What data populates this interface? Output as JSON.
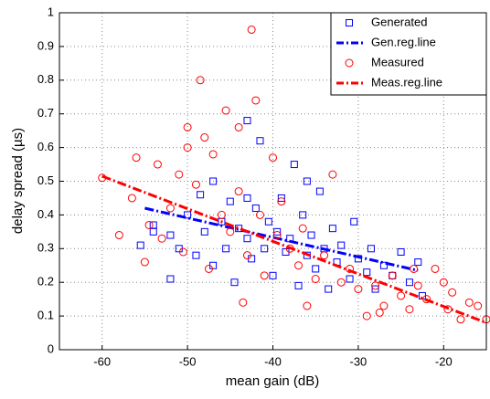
{
  "chart_data": {
    "type": "scatter",
    "xlabel": "mean gain (dB)",
    "ylabel": "delay spread (µs)",
    "xlim": [
      -65,
      -15
    ],
    "ylim": [
      0,
      1
    ],
    "xticks": [
      -60,
      -50,
      -40,
      -30,
      -20
    ],
    "yticks": [
      0,
      0.1,
      0.2,
      0.3,
      0.4,
      0.5,
      0.6,
      0.7,
      0.8,
      0.9,
      1
    ],
    "grid": true,
    "legend": "upper right",
    "series": [
      {
        "name": "Generated",
        "color": "#0000ff",
        "marker": "square",
        "x": [
          -55.5,
          -54,
          -52,
          -52,
          -51,
          -50,
          -49,
          -48.5,
          -48,
          -47,
          -47,
          -46,
          -45.5,
          -45,
          -44.5,
          -44,
          -43,
          -43,
          -42.5,
          -42,
          -41.5,
          -41,
          -40.5,
          -40,
          -39.5,
          -39,
          -38.5,
          -38,
          -37.5,
          -37,
          -36.5,
          -36,
          -35.5,
          -35,
          -34.5,
          -34,
          -33.5,
          -33,
          -32.5,
          -32,
          -31,
          -30.5,
          -30,
          -29,
          -28.5,
          -28,
          -27,
          -26,
          -25,
          -24,
          -23,
          -22.5,
          -54,
          -43,
          -36
        ],
        "y": [
          0.31,
          0.37,
          0.34,
          0.21,
          0.3,
          0.4,
          0.28,
          0.46,
          0.35,
          0.25,
          0.5,
          0.38,
          0.3,
          0.44,
          0.2,
          0.36,
          0.68,
          0.33,
          0.27,
          0.42,
          0.62,
          0.3,
          0.38,
          0.22,
          0.35,
          0.45,
          0.29,
          0.33,
          0.55,
          0.19,
          0.4,
          0.28,
          0.34,
          0.24,
          0.47,
          0.3,
          0.18,
          0.36,
          0.26,
          0.31,
          0.21,
          0.38,
          0.27,
          0.23,
          0.3,
          0.18,
          0.25,
          0.22,
          0.29,
          0.2,
          0.26,
          0.16,
          0.35,
          0.45,
          0.5
        ]
      },
      {
        "name": "Gen.reg.line",
        "color": "#0000ff",
        "style": "dashdot",
        "x": [
          -55,
          -23
        ],
        "y": [
          0.42,
          0.235
        ]
      },
      {
        "name": "Measured",
        "color": "#ff0000",
        "marker": "circle",
        "x": [
          -60,
          -58,
          -56.5,
          -56,
          -55,
          -54.5,
          -53.5,
          -53,
          -52,
          -51,
          -50.5,
          -50,
          -50,
          -49,
          -48.5,
          -48,
          -47.5,
          -47,
          -46,
          -45.5,
          -45,
          -44,
          -44,
          -43.5,
          -43,
          -42.5,
          -42,
          -41.5,
          -41,
          -40,
          -39.5,
          -39,
          -38,
          -37,
          -36.5,
          -36,
          -35,
          -34,
          -33,
          -32,
          -31,
          -30,
          -29,
          -28,
          -27,
          -26,
          -25,
          -24,
          -23,
          -22,
          -21,
          -20,
          -19.5,
          -19,
          -18,
          -17,
          -16,
          -15,
          -23.5,
          -27.5
        ],
        "y": [
          0.51,
          0.34,
          0.45,
          0.57,
          0.26,
          0.37,
          0.55,
          0.33,
          0.42,
          0.52,
          0.29,
          0.66,
          0.6,
          0.49,
          0.8,
          0.63,
          0.24,
          0.58,
          0.4,
          0.71,
          0.35,
          0.66,
          0.47,
          0.14,
          0.28,
          0.95,
          0.74,
          0.4,
          0.22,
          0.57,
          0.34,
          0.44,
          0.3,
          0.25,
          0.36,
          0.13,
          0.21,
          0.28,
          0.52,
          0.2,
          0.24,
          0.18,
          0.1,
          0.19,
          0.13,
          0.22,
          0.16,
          0.12,
          0.19,
          0.15,
          0.24,
          0.2,
          0.12,
          0.17,
          0.09,
          0.14,
          0.13,
          0.09,
          0.24,
          0.11
        ]
      },
      {
        "name": "Meas.reg.line",
        "color": "#ff0000",
        "style": "dashdot",
        "x": [
          -60,
          -15
        ],
        "y": [
          0.515,
          0.08
        ]
      }
    ]
  }
}
